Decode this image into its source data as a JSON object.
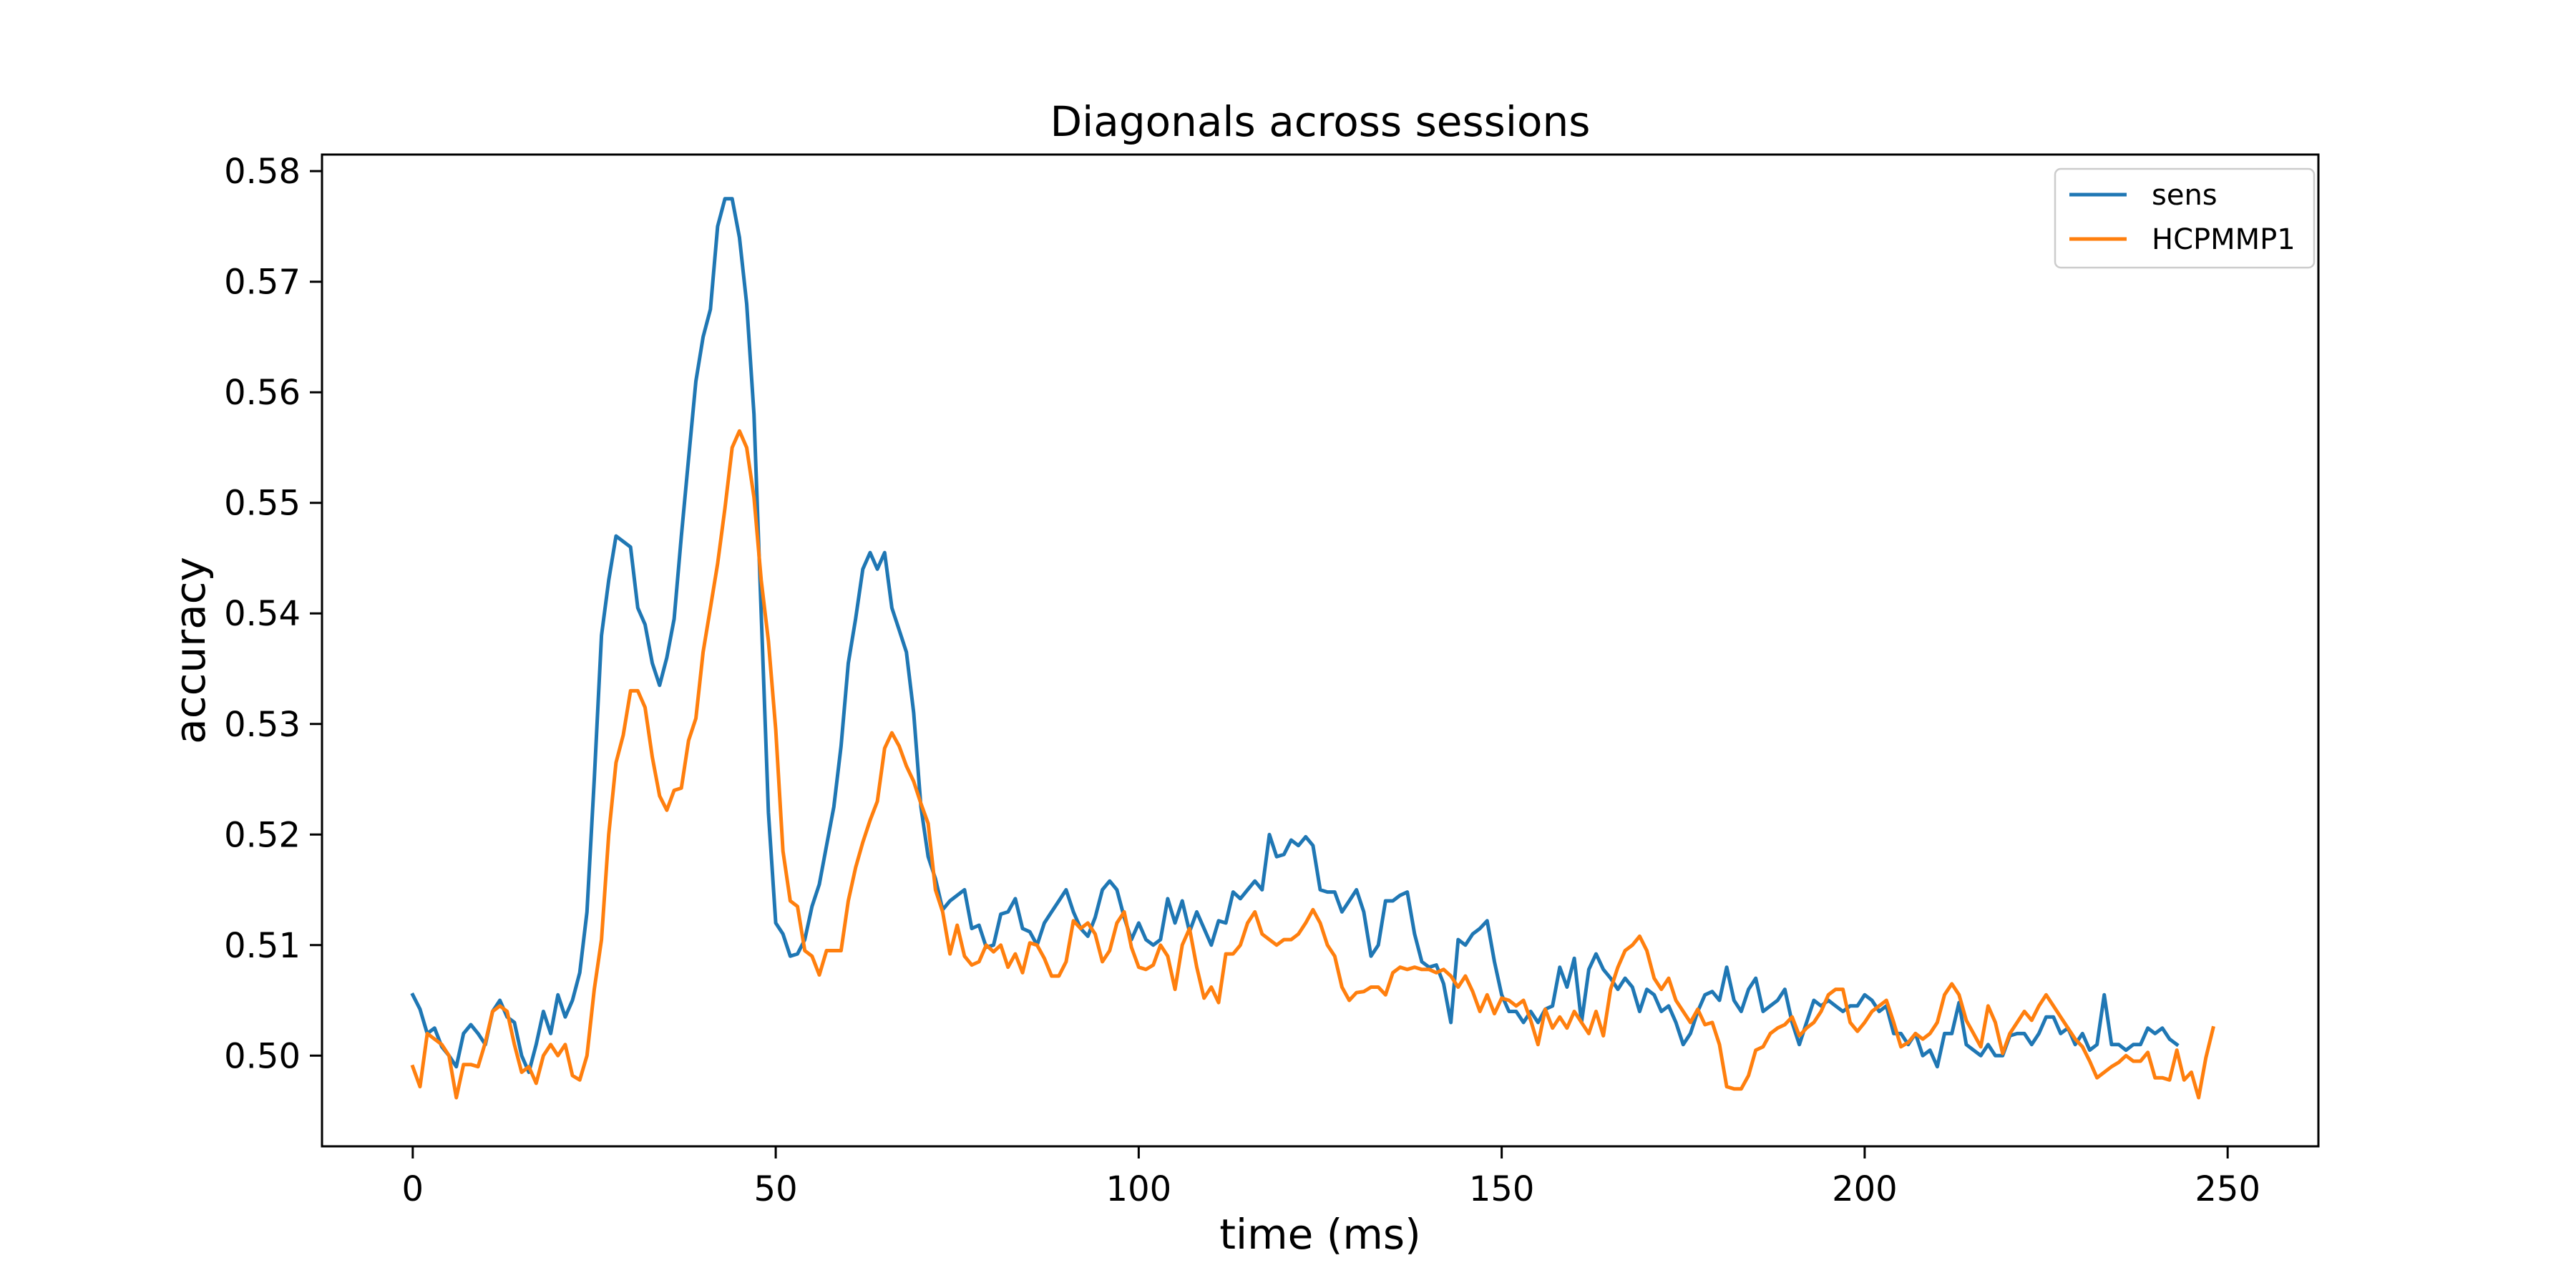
{
  "chart_data": {
    "type": "line",
    "title": "Diagonals across sessions",
    "xlabel": "time (ms)",
    "ylabel": "accuracy",
    "xlim": [
      -12.5,
      262.5
    ],
    "ylim": [
      0.4918,
      0.5815
    ],
    "xticks": [
      0,
      50,
      100,
      150,
      200,
      250
    ],
    "yticks": [
      0.5,
      0.51,
      0.52,
      0.53,
      0.54,
      0.55,
      0.56,
      0.57,
      0.58
    ],
    "ytick_labels": [
      "0.50",
      "0.51",
      "0.52",
      "0.53",
      "0.54",
      "0.55",
      "0.56",
      "0.57",
      "0.58"
    ],
    "grid": false,
    "legend_position": "top-right",
    "x_step": 1,
    "series": [
      {
        "name": "sens",
        "color": "#1f77b4",
        "values": [
          0.5055,
          0.5042,
          0.502,
          0.5025,
          0.5008,
          0.5,
          0.499,
          0.502,
          0.5028,
          0.502,
          0.501,
          0.504,
          0.505,
          0.5035,
          0.503,
          0.5,
          0.4985,
          0.501,
          0.504,
          0.502,
          0.5055,
          0.5035,
          0.505,
          0.5075,
          0.513,
          0.525,
          0.538,
          0.543,
          0.547,
          0.5465,
          0.546,
          0.5405,
          0.539,
          0.5355,
          0.5335,
          0.536,
          0.5395,
          0.547,
          0.554,
          0.561,
          0.565,
          0.5675,
          0.575,
          0.5775,
          0.5775,
          0.574,
          0.568,
          0.558,
          0.54,
          0.522,
          0.512,
          0.511,
          0.509,
          0.5092,
          0.5105,
          0.5135,
          0.5155,
          0.519,
          0.5225,
          0.528,
          0.5355,
          0.5395,
          0.544,
          0.5455,
          0.544,
          0.5455,
          0.5405,
          0.5385,
          0.5365,
          0.531,
          0.5225,
          0.518,
          0.516,
          0.5132,
          0.514,
          0.5145,
          0.515,
          0.5115,
          0.5118,
          0.5098,
          0.51,
          0.5128,
          0.513,
          0.5142,
          0.5115,
          0.5112,
          0.51,
          0.512,
          0.513,
          0.514,
          0.515,
          0.513,
          0.5115,
          0.5108,
          0.5125,
          0.515,
          0.5158,
          0.515,
          0.5125,
          0.5105,
          0.512,
          0.5105,
          0.51,
          0.5105,
          0.5142,
          0.512,
          0.514,
          0.5112,
          0.513,
          0.5115,
          0.51,
          0.5122,
          0.512,
          0.5148,
          0.5142,
          0.515,
          0.5158,
          0.515,
          0.52,
          0.518,
          0.5182,
          0.5195,
          0.519,
          0.5198,
          0.519,
          0.515,
          0.5148,
          0.5148,
          0.513,
          0.514,
          0.515,
          0.513,
          0.509,
          0.51,
          0.514,
          0.514,
          0.5145,
          0.5148,
          0.511,
          0.5085,
          0.508,
          0.5082,
          0.5065,
          0.503,
          0.5105,
          0.51,
          0.511,
          0.5115,
          0.5122,
          0.5085,
          0.5055,
          0.504,
          0.504,
          0.503,
          0.504,
          0.503,
          0.5042,
          0.5045,
          0.508,
          0.5062,
          0.5088,
          0.503,
          0.5078,
          0.5092,
          0.5078,
          0.507,
          0.506,
          0.507,
          0.5062,
          0.504,
          0.506,
          0.5055,
          0.504,
          0.5045,
          0.503,
          0.501,
          0.502,
          0.504,
          0.5055,
          0.5058,
          0.505,
          0.508,
          0.505,
          0.504,
          0.506,
          0.507,
          0.504,
          0.5045,
          0.505,
          0.506,
          0.503,
          0.501,
          0.503,
          0.505,
          0.5045,
          0.505,
          0.5045,
          0.504,
          0.5045,
          0.5045,
          0.5055,
          0.505,
          0.504,
          0.5045,
          0.502,
          0.502,
          0.501,
          0.502,
          0.5,
          0.5005,
          0.499,
          0.502,
          0.502,
          0.5048,
          0.501,
          0.5005,
          0.5,
          0.501,
          0.5,
          0.5,
          0.5018,
          0.502,
          0.502,
          0.501,
          0.502,
          0.5035,
          0.5035,
          0.502,
          0.5025,
          0.501,
          0.502,
          0.5005,
          0.501,
          0.5055,
          0.501,
          0.501,
          0.5005,
          0.501,
          0.501,
          0.5025,
          0.502,
          0.5025,
          0.5015,
          0.501
        ]
      },
      {
        "name": "HCPMMP1",
        "color": "#ff7f0e",
        "values": [
          0.499,
          0.4972,
          0.502,
          0.5015,
          0.501,
          0.5,
          0.4962,
          0.4992,
          0.4992,
          0.499,
          0.5012,
          0.504,
          0.5045,
          0.504,
          0.501,
          0.4985,
          0.499,
          0.4975,
          0.5,
          0.501,
          0.5,
          0.501,
          0.4982,
          0.4978,
          0.5,
          0.506,
          0.5105,
          0.52,
          0.5265,
          0.529,
          0.533,
          0.533,
          0.5315,
          0.527,
          0.5235,
          0.5222,
          0.524,
          0.5242,
          0.5285,
          0.5305,
          0.5365,
          0.5405,
          0.5445,
          0.5495,
          0.555,
          0.5565,
          0.555,
          0.5505,
          0.543,
          0.5375,
          0.5295,
          0.5185,
          0.514,
          0.5135,
          0.5095,
          0.509,
          0.5073,
          0.5095,
          0.5095,
          0.5095,
          0.514,
          0.517,
          0.5193,
          0.5213,
          0.523,
          0.5278,
          0.5292,
          0.528,
          0.5262,
          0.5248,
          0.5228,
          0.521,
          0.515,
          0.513,
          0.5092,
          0.5118,
          0.509,
          0.5082,
          0.5085,
          0.51,
          0.5094,
          0.51,
          0.508,
          0.5092,
          0.5075,
          0.5102,
          0.51,
          0.5088,
          0.5072,
          0.5072,
          0.5085,
          0.5122,
          0.5115,
          0.512,
          0.511,
          0.5085,
          0.5095,
          0.512,
          0.513,
          0.5098,
          0.508,
          0.5078,
          0.5082,
          0.51,
          0.509,
          0.506,
          0.51,
          0.5115,
          0.508,
          0.5052,
          0.5062,
          0.5048,
          0.5092,
          0.5092,
          0.51,
          0.512,
          0.513,
          0.511,
          0.5105,
          0.51,
          0.5105,
          0.5105,
          0.511,
          0.512,
          0.5132,
          0.512,
          0.51,
          0.509,
          0.5062,
          0.505,
          0.5057,
          0.5058,
          0.5062,
          0.5062,
          0.5055,
          0.5075,
          0.508,
          0.5078,
          0.508,
          0.5078,
          0.5078,
          0.5075,
          0.5078,
          0.5072,
          0.5062,
          0.5072,
          0.5058,
          0.504,
          0.5055,
          0.5038,
          0.5052,
          0.505,
          0.5045,
          0.505,
          0.5032,
          0.501,
          0.5042,
          0.5025,
          0.5035,
          0.5025,
          0.504,
          0.503,
          0.502,
          0.504,
          0.5018,
          0.506,
          0.508,
          0.5095,
          0.51,
          0.5108,
          0.5095,
          0.507,
          0.506,
          0.507,
          0.505,
          0.504,
          0.503,
          0.5042,
          0.5028,
          0.503,
          0.501,
          0.4972,
          0.497,
          0.497,
          0.4982,
          0.5005,
          0.5008,
          0.502,
          0.5025,
          0.5028,
          0.5035,
          0.5018,
          0.5025,
          0.503,
          0.504,
          0.5055,
          0.506,
          0.506,
          0.503,
          0.5022,
          0.503,
          0.504,
          0.5045,
          0.505,
          0.503,
          0.5008,
          0.5012,
          0.502,
          0.5015,
          0.502,
          0.503,
          0.5055,
          0.5065,
          0.5055,
          0.5032,
          0.502,
          0.5008,
          0.5045,
          0.503,
          0.5002,
          0.502,
          0.503,
          0.504,
          0.5032,
          0.5045,
          0.5055,
          0.5045,
          0.5035,
          0.5025,
          0.5015,
          0.5008,
          0.4995,
          0.498,
          0.4985,
          0.499,
          0.4994,
          0.5,
          0.4995,
          0.4995,
          0.5003,
          0.498,
          0.498,
          0.4978,
          0.5005,
          0.4978,
          0.4985,
          0.4962,
          0.4998,
          0.5025
        ]
      }
    ]
  }
}
